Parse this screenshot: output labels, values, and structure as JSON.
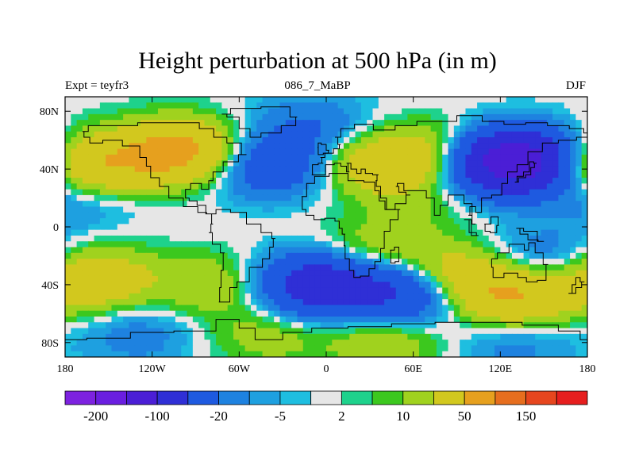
{
  "title": "Height perturbation at 500 hPa (in m)",
  "subtitle_left": "Expt = teyfr3",
  "subtitle_center": "086_7_MaBP",
  "subtitle_right": "DJF",
  "chart_data": {
    "type": "heatmap",
    "projection": "cylindrical-equidistant",
    "x_range": [
      -180,
      180
    ],
    "y_range": [
      -90,
      90
    ],
    "x_ticks": [
      "180",
      "120W",
      "60W",
      "0",
      "60E",
      "120E",
      "180"
    ],
    "y_ticks": [
      "80N",
      "40N",
      "0",
      "40S",
      "80S"
    ],
    "colorbar": {
      "colors": [
        "#7d22e0",
        "#6a1ee0",
        "#4b1ed6",
        "#2f2fd6",
        "#1e5ae0",
        "#1e82e0",
        "#1ea0e0",
        "#1ebee0",
        "#e6e6e6",
        "#1ed28c",
        "#3cc81e",
        "#a0d21e",
        "#d2c81e",
        "#e6a01e",
        "#e66e1e",
        "#e6461e",
        "#e61e1e"
      ],
      "labels": [
        "-200",
        "-100",
        "-20",
        "-5",
        "2",
        "10",
        "50",
        "150"
      ]
    },
    "anomaly_blobs_description_units": "m",
    "blobs": [
      {
        "lon": -100,
        "lat": 52,
        "value": 60
      },
      {
        "lon": -150,
        "lat": 45,
        "value": 30
      },
      {
        "lon": 40,
        "lat": 43,
        "value": 40
      },
      {
        "lon": 80,
        "lat": 52,
        "value": 20
      },
      {
        "lon": 130,
        "lat": 45,
        "value": -150
      },
      {
        "lon": -40,
        "lat": 42,
        "value": -40
      },
      {
        "lon": -10,
        "lat": 70,
        "value": -20
      },
      {
        "lon": 178,
        "lat": 40,
        "value": 20
      },
      {
        "lon": -178,
        "lat": 40,
        "value": 10
      },
      {
        "lon": -160,
        "lat": -36,
        "value": 40
      },
      {
        "lon": -80,
        "lat": -40,
        "value": 20
      },
      {
        "lon": -5,
        "lat": -40,
        "value": -80
      },
      {
        "lon": 55,
        "lat": -45,
        "value": -60
      },
      {
        "lon": 85,
        "lat": -35,
        "value": 40
      },
      {
        "lon": 130,
        "lat": -48,
        "value": 50
      },
      {
        "lon": 150,
        "lat": -22,
        "value": -20
      },
      {
        "lon": 30,
        "lat": -20,
        "value": 20
      },
      {
        "lon": -40,
        "lat": -75,
        "value": 15
      },
      {
        "lon": 40,
        "lat": -78,
        "value": 20
      },
      {
        "lon": 130,
        "lat": -80,
        "value": -15
      },
      {
        "lon": -130,
        "lat": -75,
        "value": -15
      },
      {
        "lon": -130,
        "lat": 10,
        "value": -1
      },
      {
        "lon": 60,
        "lat": 8,
        "value": 8
      },
      {
        "lon": -175,
        "lat": 20,
        "value": -15
      }
    ]
  }
}
